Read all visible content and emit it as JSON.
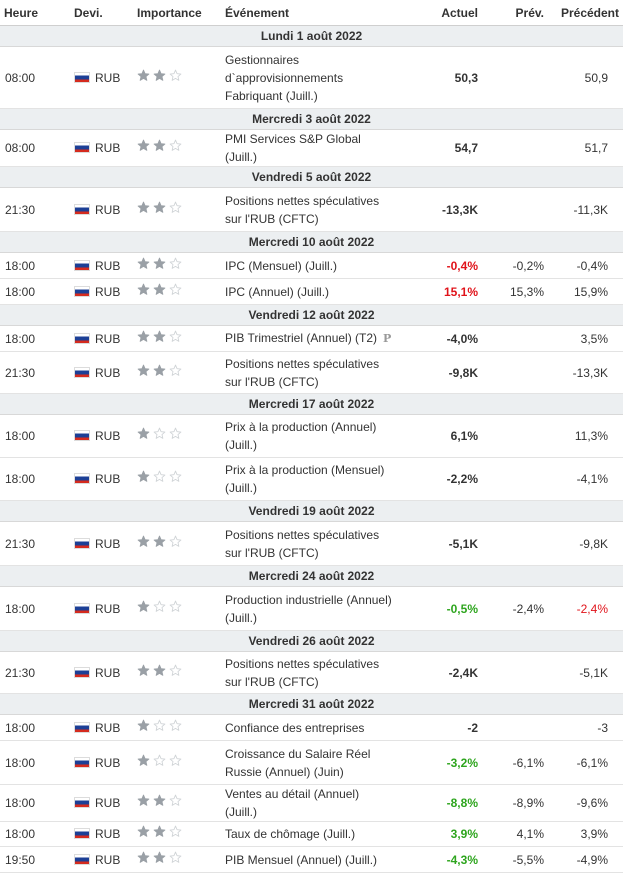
{
  "headers": {
    "time": "Heure",
    "currency": "Devi.",
    "importance": "Importance",
    "event": "Événement",
    "actual": "Actuel",
    "forecast": "Prév.",
    "previous": "Précédent"
  },
  "colors": {
    "negative": "#e0131a",
    "positive": "#2ea51e",
    "star_full": "#9aa0a6",
    "star_empty": "#cfd3d6",
    "day_bg": "#eceff1"
  },
  "rows": [
    {
      "type": "day",
      "label": "Lundi 1 août 2022",
      "h": 21
    },
    {
      "type": "event",
      "time": "08:00",
      "currency": "RUB",
      "stars": 2,
      "event": "Gestionnaires d`approvisionnements Fabriquant (Juill.)",
      "actual": "50,3",
      "actual_color": "neutral",
      "forecast": "",
      "previous": "50,9",
      "previous_color": "neutral",
      "h": 62
    },
    {
      "type": "day",
      "label": "Mercredi 3 août 2022",
      "h": 21
    },
    {
      "type": "event",
      "time": "08:00",
      "currency": "RUB",
      "stars": 2,
      "event": "PMI Services S&P Global (Juill.)",
      "actual": "54,7",
      "actual_color": "neutral",
      "forecast": "",
      "previous": "51,7",
      "previous_color": "neutral",
      "h": 26
    },
    {
      "type": "day",
      "label": "Vendredi 5 août 2022",
      "h": 21
    },
    {
      "type": "event",
      "time": "21:30",
      "currency": "RUB",
      "stars": 2,
      "event": "Positions nettes spéculatives sur l'RUB (CFTC)",
      "actual": "-13,3K",
      "actual_color": "neutral",
      "forecast": "",
      "previous": "-11,3K",
      "previous_color": "neutral",
      "h": 44
    },
    {
      "type": "day",
      "label": "Mercredi 10 août 2022",
      "h": 21
    },
    {
      "type": "event",
      "time": "18:00",
      "currency": "RUB",
      "stars": 2,
      "event": "IPC (Mensuel) (Juill.)",
      "actual": "-0,4%",
      "actual_color": "neg",
      "forecast": "-0,2%",
      "previous": "-0,4%",
      "previous_color": "neutral",
      "h": 26
    },
    {
      "type": "event",
      "time": "18:00",
      "currency": "RUB",
      "stars": 2,
      "event": "IPC (Annuel) (Juill.)",
      "actual": "15,1%",
      "actual_color": "neg",
      "forecast": "15,3%",
      "previous": "15,9%",
      "previous_color": "neutral",
      "h": 26
    },
    {
      "type": "day",
      "label": "Vendredi 12 août 2022",
      "h": 21
    },
    {
      "type": "event",
      "time": "18:00",
      "currency": "RUB",
      "stars": 2,
      "event": "PIB Trimestriel (Annuel) (T2)",
      "prelim": "P",
      "actual": "-4,0%",
      "actual_color": "neutral",
      "forecast": "",
      "previous": "3,5%",
      "previous_color": "neutral",
      "h": 26
    },
    {
      "type": "event",
      "time": "21:30",
      "currency": "RUB",
      "stars": 2,
      "event": "Positions nettes spéculatives sur l'RUB (CFTC)",
      "actual": "-9,8K",
      "actual_color": "neutral",
      "forecast": "",
      "previous": "-13,3K",
      "previous_color": "neutral",
      "h": 42
    },
    {
      "type": "day",
      "label": "Mercredi 17 août 2022",
      "h": 21
    },
    {
      "type": "event",
      "time": "18:00",
      "currency": "RUB",
      "stars": 1,
      "event": "Prix à la production (Annuel) (Juill.)",
      "actual": "6,1%",
      "actual_color": "neutral",
      "forecast": "",
      "previous": "11,3%",
      "previous_color": "neutral",
      "h": 43
    },
    {
      "type": "event",
      "time": "18:00",
      "currency": "RUB",
      "stars": 1,
      "event": "Prix à la production (Mensuel) (Juill.)",
      "actual": "-2,2%",
      "actual_color": "neutral",
      "forecast": "",
      "previous": "-4,1%",
      "previous_color": "neutral",
      "h": 43
    },
    {
      "type": "day",
      "label": "Vendredi 19 août 2022",
      "h": 21
    },
    {
      "type": "event",
      "time": "21:30",
      "currency": "RUB",
      "stars": 2,
      "event": "Positions nettes spéculatives sur l'RUB (CFTC)",
      "actual": "-5,1K",
      "actual_color": "neutral",
      "forecast": "",
      "previous": "-9,8K",
      "previous_color": "neutral",
      "h": 44
    },
    {
      "type": "day",
      "label": "Mercredi 24 août 2022",
      "h": 21
    },
    {
      "type": "event",
      "time": "18:00",
      "currency": "RUB",
      "stars": 1,
      "event": "Production industrielle (Annuel) (Juill.)",
      "actual": "-0,5%",
      "actual_color": "pos",
      "forecast": "-2,4%",
      "previous": "-2,4%",
      "previous_color": "neg",
      "h": 44
    },
    {
      "type": "day",
      "label": "Vendredi 26 août 2022",
      "h": 21
    },
    {
      "type": "event",
      "time": "21:30",
      "currency": "RUB",
      "stars": 2,
      "event": "Positions nettes spéculatives sur l'RUB (CFTC)",
      "actual": "-2,4K",
      "actual_color": "neutral",
      "forecast": "",
      "previous": "-5,1K",
      "previous_color": "neutral",
      "h": 42
    },
    {
      "type": "day",
      "label": "Mercredi 31 août 2022",
      "h": 21
    },
    {
      "type": "event",
      "time": "18:00",
      "currency": "RUB",
      "stars": 1,
      "event": "Confiance des entreprises",
      "actual": "-2",
      "actual_color": "neutral",
      "forecast": "",
      "previous": "-3",
      "previous_color": "neutral",
      "h": 26
    },
    {
      "type": "event",
      "time": "18:00",
      "currency": "RUB",
      "stars": 1,
      "event": "Croissance du Salaire Réel Russie (Annuel) (Juin)",
      "actual": "-3,2%",
      "actual_color": "pos",
      "forecast": "-6,1%",
      "previous": "-6,1%",
      "previous_color": "neutral",
      "h": 44
    },
    {
      "type": "event",
      "time": "18:00",
      "currency": "RUB",
      "stars": 2,
      "event": "Ventes au détail (Annuel) (Juill.)",
      "actual": "-8,8%",
      "actual_color": "pos",
      "forecast": "-8,9%",
      "previous": "-9,6%",
      "previous_color": "neutral",
      "h": 26
    },
    {
      "type": "event",
      "time": "18:00",
      "currency": "RUB",
      "stars": 2,
      "event": "Taux de chômage (Juill.)",
      "actual": "3,9%",
      "actual_color": "pos",
      "forecast": "4,1%",
      "previous": "3,9%",
      "previous_color": "neutral",
      "h": 25
    },
    {
      "type": "event",
      "time": "19:50",
      "currency": "RUB",
      "stars": 2,
      "event": "PIB Mensuel (Annuel) (Juill.)",
      "actual": "-4,3%",
      "actual_color": "pos",
      "forecast": "-5,5%",
      "previous": "-4,9%",
      "previous_color": "neutral",
      "h": 26
    }
  ]
}
